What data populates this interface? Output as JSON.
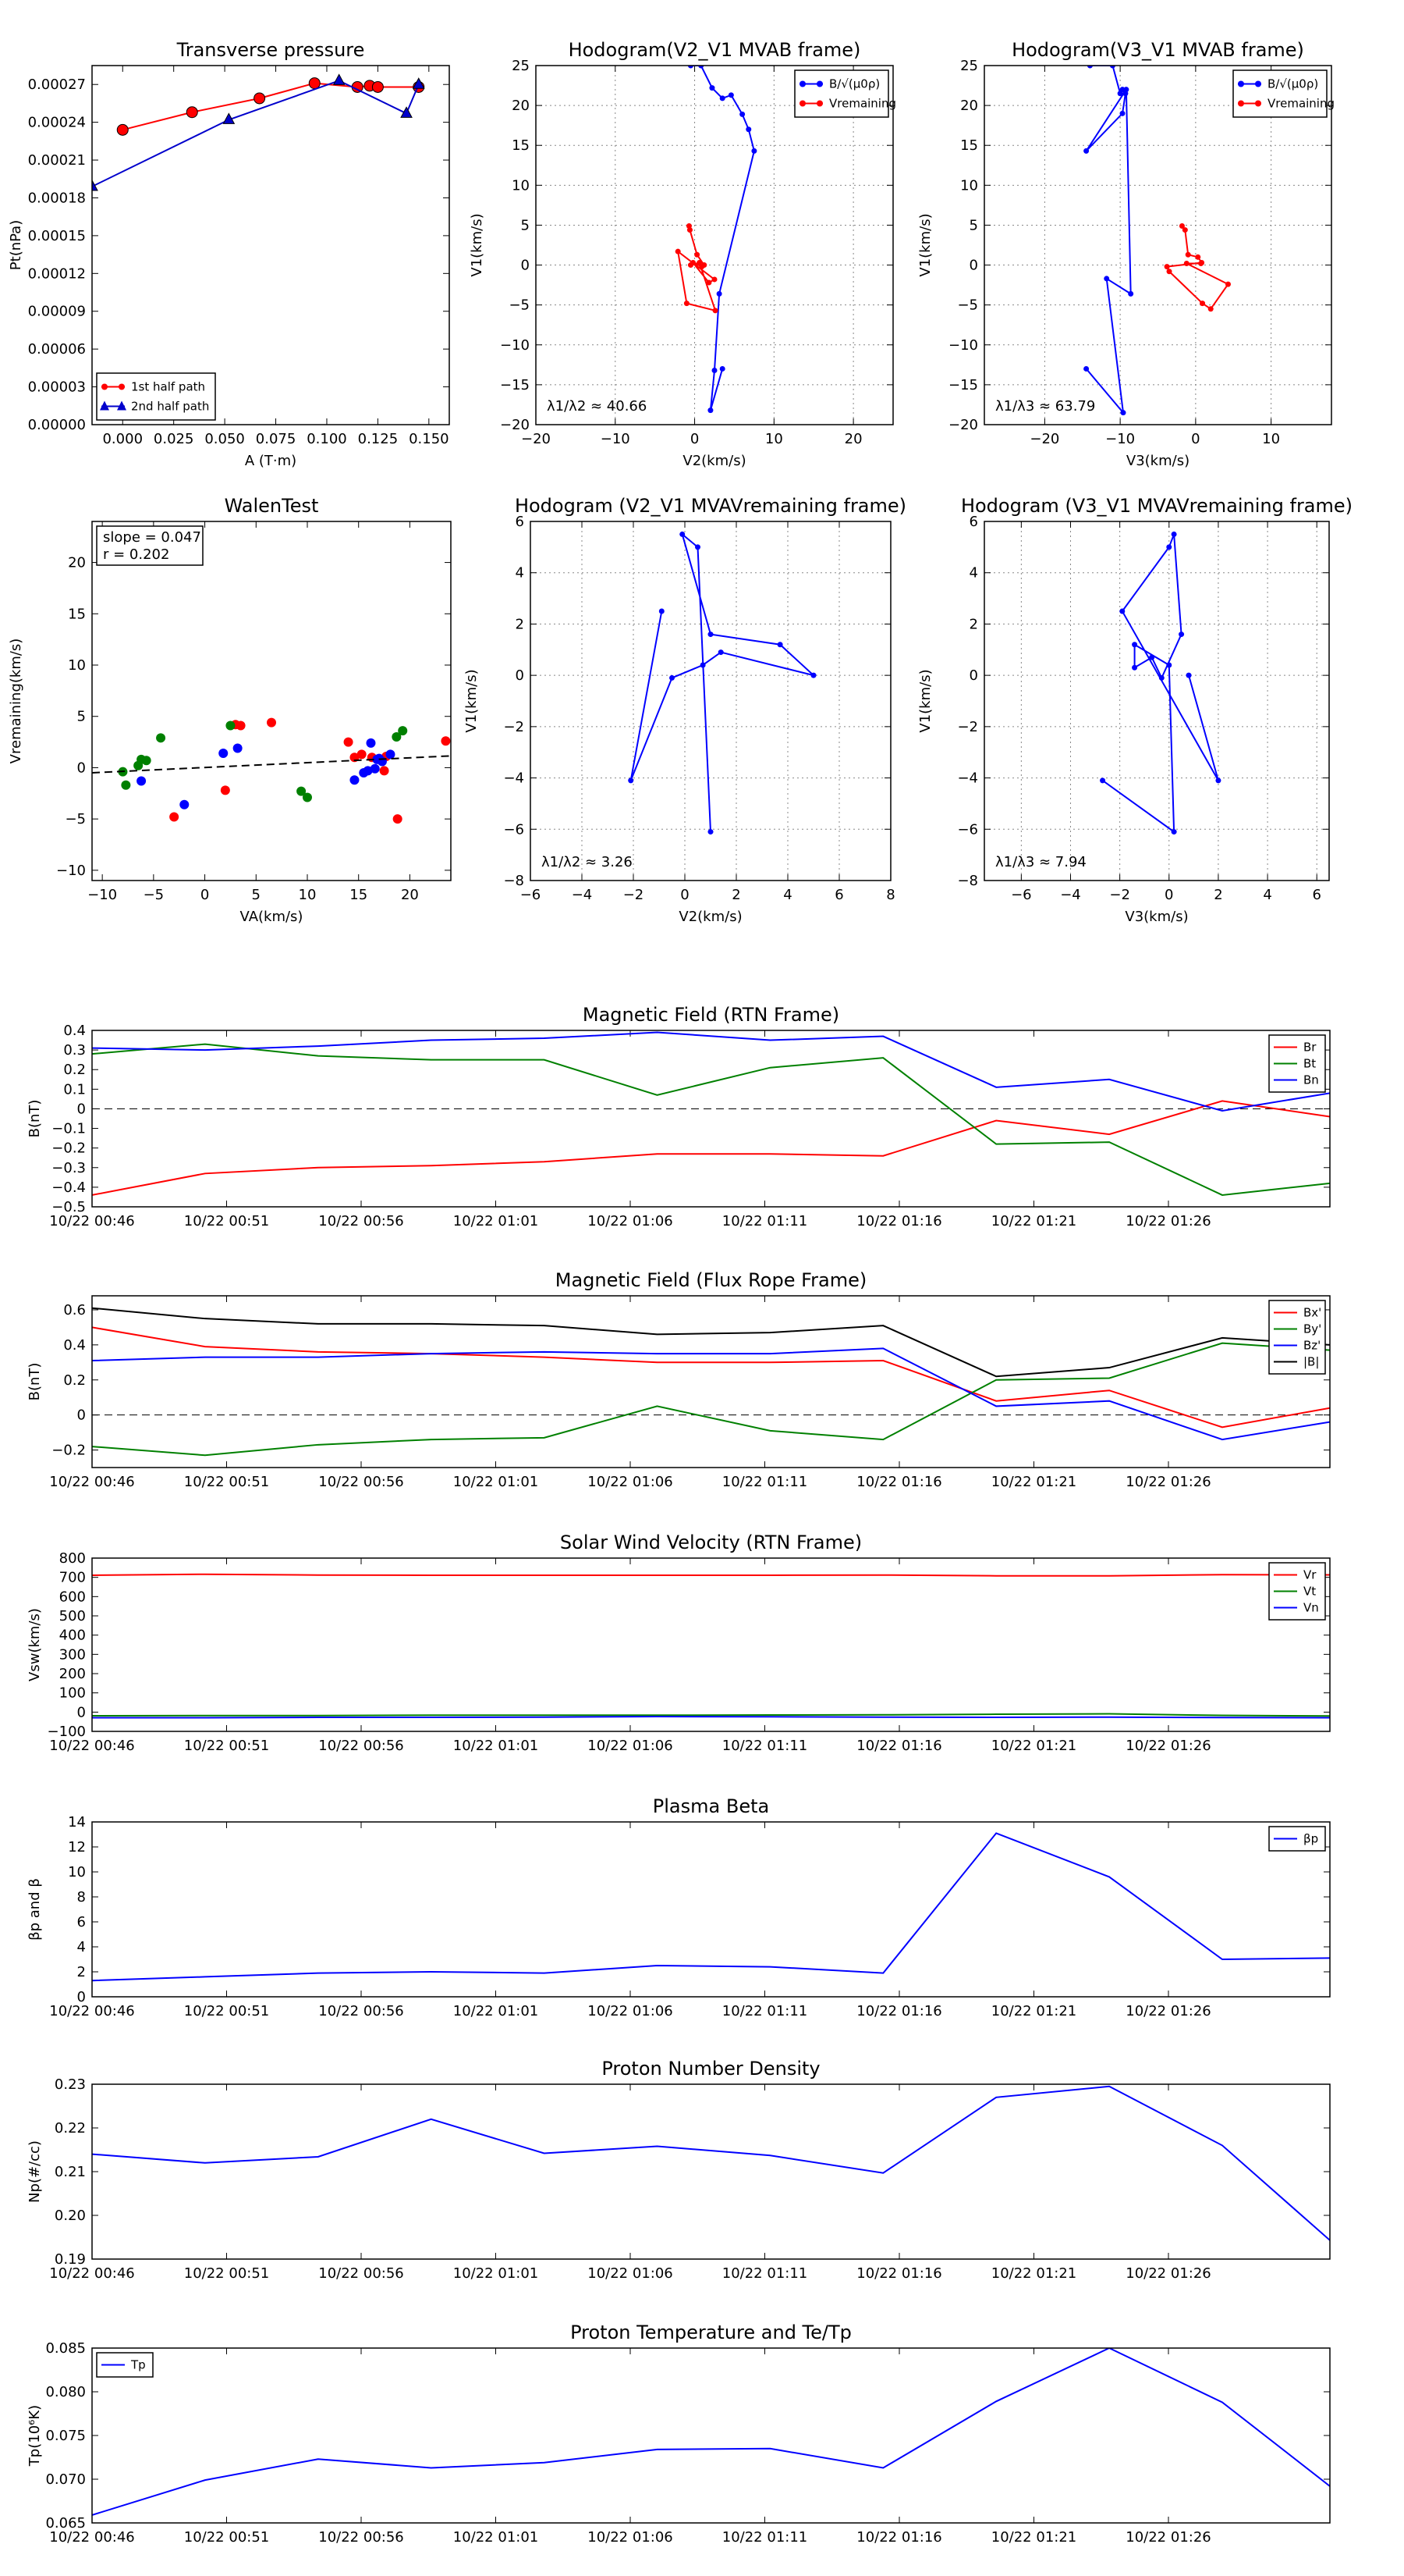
{
  "chart_data": [
    {
      "id": "tp",
      "type": "line",
      "title": "Transverse pressure",
      "xlabel": "A (T·m)",
      "ylabel": "Pt(nPa)",
      "xlim": [
        -0.015,
        0.16
      ],
      "ylim": [
        0.0,
        0.000285
      ],
      "xticks": [
        0.0,
        0.025,
        0.05,
        0.075,
        0.1,
        0.125,
        0.15
      ],
      "xtick_labels": [
        "0.000",
        "0.025",
        "0.050",
        "0.075",
        "0.100",
        "0.125",
        "0.150"
      ],
      "yticks": [
        0.0,
        3e-05,
        6e-05,
        9e-05,
        0.00012,
        0.00015,
        0.00018,
        0.00021,
        0.00024,
        0.00027
      ],
      "ytick_labels": [
        "0.00000",
        "0.00003",
        "0.00006",
        "0.00009",
        "0.00012",
        "0.00015",
        "0.00018",
        "0.00021",
        "0.00024",
        "0.00027"
      ],
      "legend": "lower-left",
      "series": [
        {
          "name": "1st half path",
          "color": "#ff0000",
          "marker": "circle",
          "x": [
            0.0,
            0.034,
            0.067,
            0.094,
            0.115,
            0.121,
            0.125,
            0.145
          ],
          "y": [
            0.000234,
            0.000248,
            0.000259,
            0.000271,
            0.000268,
            0.000269,
            0.000268,
            0.000268
          ]
        },
        {
          "name": "2nd half path",
          "color": "#0000cc",
          "marker": "triangle",
          "x": [
            -0.015,
            0.052,
            0.106,
            0.139,
            0.145
          ],
          "y": [
            0.000189,
            0.000242,
            0.000273,
            0.000247,
            0.00027
          ]
        }
      ]
    },
    {
      "id": "hodo_b_v2",
      "type": "line",
      "title": "Hodogram(V2_V1 MVAB frame)",
      "xlabel": "V2(km/s)",
      "ylabel": "V1(km/s)",
      "xlim": [
        -20,
        25
      ],
      "ylim": [
        -20,
        25
      ],
      "xticks": [
        -20,
        -10,
        0,
        10,
        20
      ],
      "yticks": [
        -20,
        -15,
        -10,
        -5,
        0,
        5,
        10,
        15,
        20,
        25
      ],
      "grid": true,
      "legend": "top-right",
      "annotation": "λ1/λ2 ≈ 40.66",
      "series": [
        {
          "name": "B/√(μ0ρ)",
          "color": "#0000ff",
          "marker": "circle",
          "x": [
            -0.5,
            0.8,
            2.2,
            3.5,
            4.6,
            6.0,
            6.8,
            7.5,
            3.1,
            2.5,
            2.0,
            3.5
          ],
          "y": [
            25.0,
            25.0,
            22.2,
            20.9,
            21.3,
            18.9,
            17.0,
            14.3,
            -3.6,
            -13.2,
            -18.2,
            -13.0
          ]
        },
        {
          "name": "Vremaining",
          "color": "#ff0000",
          "marker": "circle",
          "x": [
            -0.7,
            -0.6,
            0.3,
            1.2,
            0.9,
            -0.2,
            1.8,
            2.5,
            -2.1,
            -1.0,
            2.6,
            0.6,
            -0.5
          ],
          "y": [
            4.9,
            4.4,
            1.3,
            0.0,
            -0.2,
            0.3,
            -2.2,
            -1.8,
            1.7,
            -4.8,
            -5.7,
            0.3,
            0.0
          ]
        }
      ]
    },
    {
      "id": "hodo_b_v3",
      "type": "line",
      "title": "Hodogram(V3_V1 MVAB frame)",
      "xlabel": "V3(km/s)",
      "ylabel": "V1(km/s)",
      "xlim": [
        -28,
        18
      ],
      "ylim": [
        -20,
        25
      ],
      "xticks": [
        -20,
        -10,
        0,
        10
      ],
      "yticks": [
        -20,
        -15,
        -10,
        -5,
        0,
        5,
        10,
        15,
        20,
        25
      ],
      "grid": true,
      "legend": "top-right",
      "annotation": "λ1/λ3 ≈ 63.79",
      "series": [
        {
          "name": "B/√(μ0ρ)",
          "color": "#0000ff",
          "marker": "circle",
          "x": [
            -14.0,
            -11.0,
            -10.0,
            -9.7,
            -9.3,
            -9.7,
            -14.5,
            -9.2,
            -8.6,
            -11.8,
            -9.6,
            -14.5
          ],
          "y": [
            25.0,
            25.0,
            21.5,
            22.0,
            21.5,
            19.0,
            14.3,
            22.0,
            -3.6,
            -1.7,
            -18.5,
            -13.0
          ]
        },
        {
          "name": "Vremaining",
          "color": "#ff0000",
          "marker": "circle",
          "x": [
            -1.8,
            -1.4,
            -1.0,
            0.3,
            0.8,
            -3.8,
            -3.5,
            0.9,
            2.0,
            4.3,
            -1.2,
            0.7
          ],
          "y": [
            4.9,
            4.4,
            1.3,
            1.0,
            0.3,
            -0.2,
            -0.8,
            -4.8,
            -5.5,
            -2.4,
            0.2,
            0.2
          ]
        }
      ]
    },
    {
      "id": "walen",
      "type": "scatter",
      "title": "WalenTest",
      "xlabel": "VA(km/s)",
      "ylabel": "Vremaining(km/s)",
      "xlim": [
        -11,
        24
      ],
      "ylim": [
        -11,
        24
      ],
      "xticks": [
        -10,
        -5,
        0,
        5,
        10,
        15,
        20
      ],
      "yticks": [
        -10,
        -5,
        0,
        5,
        10,
        15,
        20
      ],
      "annotation": [
        "slope = 0.047",
        "r = 0.202"
      ],
      "fit_line": {
        "slope": 0.047,
        "intercept": 0.02,
        "color": "#000000",
        "dash": true
      },
      "series": [
        {
          "color": "#ff0000",
          "x": [
            -3.0,
            2.0,
            3.0,
            3.5,
            6.5,
            14.0,
            14.6,
            15.3,
            16.3,
            17.5,
            17.7,
            18.8,
            23.5
          ],
          "y": [
            -4.8,
            -2.2,
            4.2,
            4.1,
            4.4,
            2.5,
            1.0,
            1.3,
            1.0,
            -0.3,
            1.1,
            -5.0,
            2.6
          ]
        },
        {
          "color": "#008000",
          "x": [
            -8.0,
            -7.7,
            -6.5,
            -6.2,
            -5.7,
            -4.3,
            2.5,
            9.4,
            10.0,
            18.7,
            19.3
          ],
          "y": [
            -0.4,
            -1.7,
            0.2,
            0.8,
            0.7,
            2.9,
            4.1,
            -2.3,
            -2.9,
            3.0,
            3.6
          ]
        },
        {
          "color": "#0000ff",
          "x": [
            -6.2,
            -2.0,
            1.8,
            3.2,
            14.6,
            15.5,
            15.9,
            16.2,
            16.6,
            16.8,
            17.3,
            18.1,
            17.0
          ],
          "y": [
            -1.3,
            -3.6,
            1.4,
            1.9,
            -1.2,
            -0.5,
            -0.3,
            2.4,
            -0.1,
            0.8,
            0.6,
            1.3,
            0.9
          ]
        }
      ]
    },
    {
      "id": "hodo_v_v2",
      "type": "line",
      "title": "Hodogram (V2_V1 MVAVremaining frame)",
      "xlabel": "V2(km/s)",
      "ylabel": "V1(km/s)",
      "xlim": [
        -6,
        8
      ],
      "ylim": [
        -8,
        6
      ],
      "xticks": [
        -6,
        -4,
        -2,
        0,
        2,
        4,
        6,
        8
      ],
      "yticks": [
        -8,
        -6,
        -4,
        -2,
        0,
        2,
        4,
        6
      ],
      "grid": true,
      "annotation": "λ1/λ2 ≈ 3.26",
      "series": [
        {
          "color": "#0000ff",
          "marker": "circle",
          "x": [
            -0.9,
            -2.1,
            -0.5,
            0.7,
            1.4,
            5.0,
            3.7,
            1.0,
            -0.1,
            0.5,
            1.0
          ],
          "y": [
            2.5,
            -4.1,
            -0.1,
            0.4,
            0.9,
            0.0,
            1.2,
            1.6,
            5.5,
            5.0,
            -6.1
          ]
        }
      ]
    },
    {
      "id": "hodo_v_v3",
      "type": "line",
      "title": "Hodogram (V3_V1 MVAVremaining frame)",
      "xlabel": "V3(km/s)",
      "ylabel": "V1(km/s)",
      "xlim": [
        -7.5,
        6.5
      ],
      "ylim": [
        -8,
        6
      ],
      "xticks": [
        -6,
        -4,
        -2,
        0,
        2,
        4,
        6
      ],
      "yticks": [
        -8,
        -6,
        -4,
        -2,
        0,
        2,
        4,
        6
      ],
      "grid": true,
      "annotation": "λ1/λ3 ≈ 7.94",
      "series": [
        {
          "color": "#0000ff",
          "marker": "circle",
          "x": [
            -2.7,
            0.2,
            0.0,
            -1.4,
            -1.4,
            -0.7,
            -0.3,
            0.5,
            0.2,
            0.0,
            -1.9,
            2.0,
            0.8
          ],
          "y": [
            -4.1,
            -6.1,
            0.4,
            1.2,
            0.3,
            0.7,
            -0.1,
            1.6,
            5.5,
            5.0,
            2.5,
            -4.1,
            0.0
          ]
        }
      ]
    },
    {
      "id": "mag_rtn",
      "type": "line",
      "title": "Magnetic Field (RTN Frame)",
      "ylabel": "B(nT)",
      "xlim": [
        0,
        46
      ],
      "ylim": [
        -0.5,
        0.4
      ],
      "yticks": [
        -0.5,
        -0.4,
        -0.3,
        -0.2,
        -0.1,
        0.0,
        0.1,
        0.2,
        0.3,
        0.4
      ],
      "zero_line": true,
      "legend": "top-right",
      "series": [
        {
          "name": "Br",
          "color": "#ff0000",
          "y": [
            -0.44,
            -0.33,
            -0.3,
            -0.29,
            -0.27,
            -0.23,
            -0.23,
            -0.24,
            -0.06,
            -0.13,
            0.04,
            -0.04
          ]
        },
        {
          "name": "Bt",
          "color": "#008000",
          "y": [
            0.28,
            0.33,
            0.27,
            0.25,
            0.25,
            0.07,
            0.21,
            0.26,
            -0.18,
            -0.17,
            -0.44,
            -0.38
          ]
        },
        {
          "name": "Bn",
          "color": "#0000ff",
          "y": [
            0.31,
            0.3,
            0.32,
            0.35,
            0.36,
            0.39,
            0.35,
            0.37,
            0.11,
            0.15,
            -0.01,
            0.08
          ]
        }
      ]
    },
    {
      "id": "mag_fr",
      "type": "line",
      "title": "Magnetic Field (Flux Rope Frame)",
      "ylabel": "B(nT)",
      "xlim": [
        0,
        46
      ],
      "ylim": [
        -0.3,
        0.68
      ],
      "yticks": [
        -0.2,
        0.0,
        0.2,
        0.4,
        0.6
      ],
      "zero_line": true,
      "legend": "top-right",
      "series": [
        {
          "name": "Bx'",
          "color": "#ff0000",
          "y": [
            0.5,
            0.39,
            0.36,
            0.35,
            0.33,
            0.3,
            0.3,
            0.31,
            0.08,
            0.14,
            -0.07,
            0.04
          ]
        },
        {
          "name": "By'",
          "color": "#008000",
          "y": [
            -0.18,
            -0.23,
            -0.17,
            -0.14,
            -0.13,
            0.05,
            -0.09,
            -0.14,
            0.2,
            0.21,
            0.41,
            0.37
          ]
        },
        {
          "name": "Bz'",
          "color": "#0000ff",
          "y": [
            0.31,
            0.33,
            0.33,
            0.35,
            0.36,
            0.35,
            0.35,
            0.38,
            0.05,
            0.08,
            -0.14,
            -0.04
          ]
        },
        {
          "name": "|B|",
          "color": "#000000",
          "y": [
            0.61,
            0.55,
            0.52,
            0.52,
            0.51,
            0.46,
            0.47,
            0.51,
            0.22,
            0.27,
            0.44,
            0.4
          ]
        }
      ]
    },
    {
      "id": "vsw",
      "type": "line",
      "title": "Solar Wind Velocity (RTN Frame)",
      "ylabel": "Vsw(km/s)",
      "xlim": [
        0,
        46
      ],
      "ylim": [
        -100,
        800
      ],
      "yticks": [
        -100,
        0,
        100,
        200,
        300,
        400,
        500,
        600,
        700,
        800
      ],
      "legend": "top-right",
      "series": [
        {
          "name": "Vr",
          "color": "#ff0000",
          "y": [
            711,
            716,
            712,
            711,
            711,
            711,
            711,
            712,
            708,
            708,
            714,
            713
          ]
        },
        {
          "name": "Vt",
          "color": "#008000",
          "y": [
            -19,
            -18,
            -18,
            -16,
            -16,
            -16,
            -15,
            -14,
            -11,
            -9,
            -17,
            -20
          ]
        },
        {
          "name": "Vn",
          "color": "#0000ff",
          "y": [
            -29,
            -29,
            -27,
            -27,
            -26,
            -23,
            -24,
            -26,
            -27,
            -26,
            -28,
            -29
          ]
        }
      ]
    },
    {
      "id": "beta",
      "type": "line",
      "title": "Plasma Beta",
      "ylabel": "βp and β",
      "xlim": [
        0,
        46
      ],
      "ylim": [
        0,
        14
      ],
      "yticks": [
        0,
        2,
        4,
        6,
        8,
        10,
        12,
        14
      ],
      "legend": "top-right",
      "series": [
        {
          "name": "βp",
          "color": "#0000ff",
          "y": [
            1.3,
            1.6,
            1.9,
            2.0,
            1.9,
            2.5,
            2.4,
            1.9,
            13.1,
            9.6,
            3.0,
            3.1
          ]
        }
      ]
    },
    {
      "id": "np",
      "type": "line",
      "title": "Proton Number Density",
      "ylabel": "Np(#/cc)",
      "xlim": [
        0,
        46
      ],
      "ylim": [
        0.19,
        0.23
      ],
      "yticks": [
        0.19,
        0.2,
        0.21,
        0.22,
        0.23
      ],
      "ytick_labels": [
        "0.19",
        "0.20",
        "0.21",
        "0.22",
        "0.23"
      ],
      "series": [
        {
          "color": "#0000ff",
          "y": [
            0.214,
            0.212,
            0.2134,
            0.222,
            0.2142,
            0.2158,
            0.2137,
            0.2097,
            0.227,
            0.2295,
            0.216,
            0.1943
          ]
        }
      ]
    },
    {
      "id": "tp_temp",
      "type": "line",
      "title": "Proton Temperature and Te/Tp",
      "ylabel": "Tp(10⁶K)",
      "xlim": [
        0,
        46
      ],
      "ylim": [
        0.065,
        0.085
      ],
      "yticks": [
        0.065,
        0.07,
        0.075,
        0.08,
        0.085
      ],
      "ytick_labels": [
        "0.065",
        "0.070",
        "0.075",
        "0.080",
        "0.085"
      ],
      "legend": "top-left",
      "series": [
        {
          "name": "Tp",
          "color": "#0000ff",
          "y": [
            0.0659,
            0.0699,
            0.0723,
            0.0713,
            0.0719,
            0.0734,
            0.0735,
            0.0713,
            0.0789,
            0.085,
            0.0788,
            0.0692
          ]
        }
      ]
    }
  ],
  "time_axis": {
    "x": [
      0,
      4.2,
      8.4,
      12.6,
      16.8,
      21,
      25.2,
      29.4,
      33.6,
      37.8,
      42,
      46
    ],
    "ticks": [
      0,
      5,
      10,
      15,
      20,
      25,
      30,
      35,
      40
    ],
    "tick_labels": [
      "10/22 00:46",
      "10/22 00:51",
      "10/22 00:56",
      "10/22 01:01",
      "10/22 01:06",
      "10/22 01:11",
      "10/22 01:16",
      "10/22 01:21",
      "10/22 01:26"
    ]
  }
}
